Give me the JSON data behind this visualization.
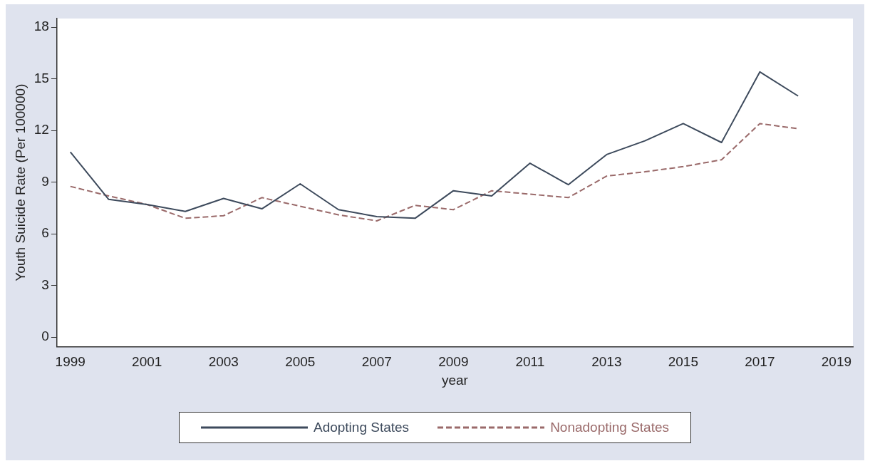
{
  "chart_data": {
    "type": "line",
    "xlabel": "year",
    "ylabel": "Youth Suicide Rate (Per 100000)",
    "x": [
      1999,
      2000,
      2001,
      2002,
      2003,
      2004,
      2005,
      2006,
      2007,
      2008,
      2009,
      2010,
      2011,
      2012,
      2013,
      2014,
      2015,
      2016,
      2017,
      2018
    ],
    "series": [
      {
        "name": "Adopting States",
        "color": "#3d4a5c",
        "line_style": "solid",
        "values": [
          10.75,
          8.0,
          7.7,
          7.3,
          8.05,
          7.45,
          8.9,
          7.4,
          7.0,
          6.9,
          8.5,
          8.2,
          10.1,
          8.85,
          10.6,
          11.4,
          12.4,
          11.3,
          15.4,
          14.0
        ]
      },
      {
        "name": "Nonadopting States",
        "color": "#9a6a6a",
        "line_style": "dashed",
        "values": [
          8.75,
          8.2,
          7.7,
          6.9,
          7.05,
          8.1,
          7.6,
          7.1,
          6.75,
          7.65,
          7.4,
          8.5,
          8.3,
          8.1,
          9.35,
          9.6,
          9.9,
          10.3,
          12.4,
          12.1
        ]
      }
    ],
    "xlim": [
      1998.65,
      2019.43
    ],
    "xticks": [
      1999,
      2001,
      2003,
      2005,
      2007,
      2009,
      2011,
      2013,
      2015,
      2017,
      2019
    ],
    "ylim": [
      -0.55,
      18.5
    ],
    "yticks": [
      0,
      3,
      6,
      9,
      12,
      15,
      18
    ],
    "grid": false,
    "legend": "bottom",
    "marker": "none"
  }
}
